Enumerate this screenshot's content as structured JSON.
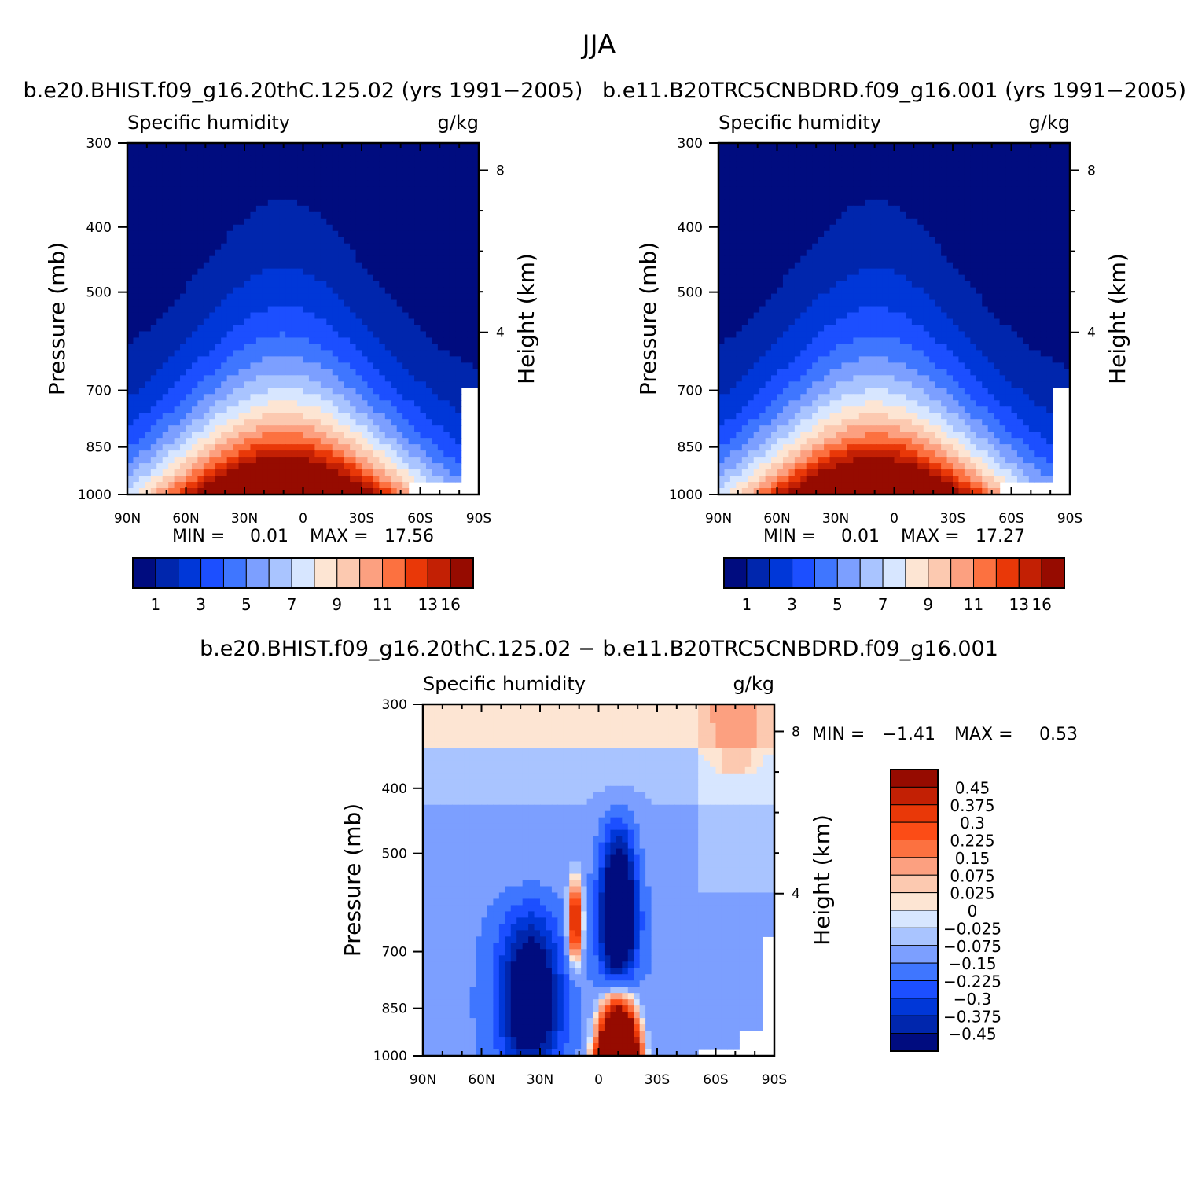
{
  "figure_title": "JJA",
  "colors": {
    "abs_palette": [
      "#000c7f",
      "#0026ad",
      "#0037d8",
      "#1c4fff",
      "#3f76ff",
      "#7c9fff",
      "#a9c4ff",
      "#d7e6ff",
      "#fde5d3",
      "#fcc9b0",
      "#fca080",
      "#fc7140",
      "#e93808",
      "#c32004",
      "#960b00"
    ],
    "diff_palette": [
      "#000c7f",
      "#0026ad",
      "#0037d8",
      "#1c4fff",
      "#3f76ff",
      "#7c9fff",
      "#a9c4ff",
      "#d7e6ff",
      "#fde5d3",
      "#fcc9b0",
      "#fca080",
      "#fc7140",
      "#fc4c16",
      "#e93808",
      "#c32004",
      "#960b00"
    ]
  },
  "chart_data": [
    {
      "type": "heatmap",
      "title": "b.e20.BHIST.f09_g16.20thC.125.02 (yrs 1991−2005)",
      "left_label": "Specific humidity",
      "right_label": "g/kg",
      "ylabel": "Pressure (mb)",
      "ylabel2": "Height (km)",
      "x_ticks": [
        "90N",
        "60N",
        "30N",
        "0",
        "30S",
        "60S",
        "90S"
      ],
      "x_range": [
        90,
        -90
      ],
      "y_ticks": [
        "300",
        "400",
        "500",
        "700",
        "850",
        "1000"
      ],
      "y_range": [
        300,
        1000
      ],
      "height_ticks": [
        "8",
        "4"
      ],
      "min_label": "MIN =",
      "min_value": "0.01",
      "max_label": "MAX =",
      "max_value": "17.56",
      "colorbar_labels": [
        "1",
        "3",
        "5",
        "7",
        "9",
        "11",
        "13",
        "16"
      ],
      "peak_value": 17.56,
      "peak_lat": 10
    },
    {
      "type": "heatmap",
      "title": "b.e11.B20TRC5CNBDRD.f09_g16.001 (yrs 1991−2005)",
      "left_label": "Specific humidity",
      "right_label": "g/kg",
      "ylabel": "Pressure (mb)",
      "ylabel2": "Height (km)",
      "x_ticks": [
        "90N",
        "60N",
        "30N",
        "0",
        "30S",
        "60S",
        "90S"
      ],
      "x_range": [
        90,
        -90
      ],
      "y_ticks": [
        "300",
        "400",
        "500",
        "700",
        "850",
        "1000"
      ],
      "y_range": [
        300,
        1000
      ],
      "height_ticks": [
        "8",
        "4"
      ],
      "min_label": "MIN =",
      "min_value": "0.01",
      "max_label": "MAX =",
      "max_value": "17.27",
      "colorbar_labels": [
        "1",
        "3",
        "5",
        "7",
        "9",
        "11",
        "13",
        "16"
      ],
      "peak_value": 17.27,
      "peak_lat": 10
    },
    {
      "type": "heatmap",
      "title": "b.e20.BHIST.f09_g16.20thC.125.02 − b.e11.B20TRC5CNBDRD.f09_g16.001",
      "left_label": "Specific humidity",
      "right_label": "g/kg",
      "ylabel": "Pressure (mb)",
      "ylabel2": "Height (km)",
      "x_ticks": [
        "90N",
        "60N",
        "30N",
        "0",
        "30S",
        "60S",
        "90S"
      ],
      "x_range": [
        90,
        -90
      ],
      "y_ticks": [
        "300",
        "400",
        "500",
        "700",
        "850",
        "1000"
      ],
      "y_range": [
        300,
        1000
      ],
      "height_ticks": [
        "8",
        "4"
      ],
      "min_label": "MIN =",
      "min_value": "−1.41",
      "max_label": "MAX =",
      "max_value": "0.53",
      "colorbar_labels": [
        "0.45",
        "0.375",
        "0.3",
        "0.225",
        "0.15",
        "0.075",
        "0.025",
        "0",
        "−0.025",
        "−0.075",
        "−0.15",
        "−0.225",
        "−0.3",
        "−0.375",
        "−0.45"
      ]
    }
  ]
}
